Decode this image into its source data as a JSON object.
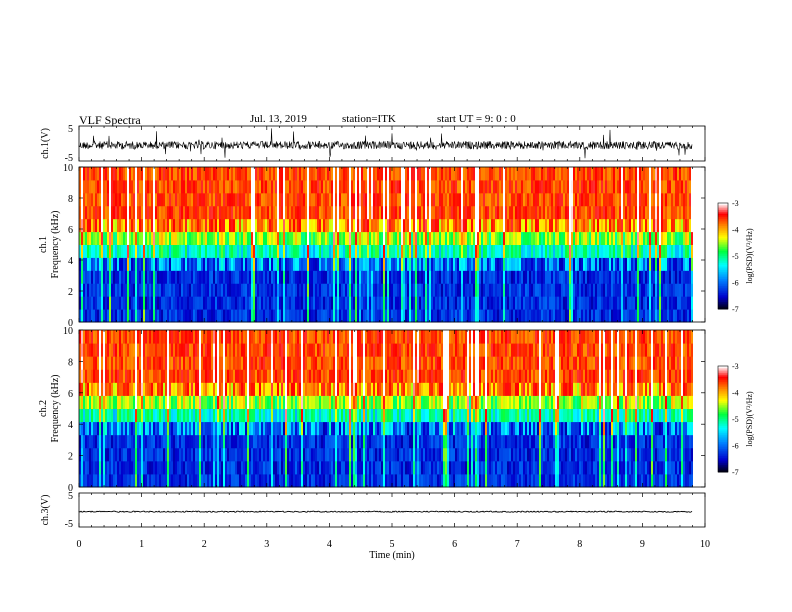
{
  "header": {
    "title": "VLF Spectra",
    "date": "Jul. 13, 2019",
    "station": "station=ITK",
    "start": "start UT =   9: 0 : 0"
  },
  "chart_data": [
    {
      "type": "line",
      "panel": "ch1-waveform",
      "ylabel": "ch.1(V)",
      "yticks": [
        "5",
        "-5"
      ],
      "ylim": [
        -5,
        5
      ],
      "xlim": [
        0,
        10
      ]
    },
    {
      "type": "heatmap",
      "panel": "ch1-spectrogram",
      "ylabel": "ch.1  Frequency (kHz)",
      "yticks": [
        "0",
        "2",
        "4",
        "6",
        "8",
        "10"
      ],
      "ylim": [
        0,
        10
      ],
      "xlim": [
        0,
        10
      ],
      "colorbar": {
        "label": "log(PSD)(V²/Hz)",
        "ticks": [
          "-3",
          "-4",
          "-5",
          "-6",
          "-7"
        ],
        "range": [
          -7,
          -3
        ],
        "colors": [
          "#000000",
          "#0000cc",
          "#0080ff",
          "#00ffff",
          "#00ff40",
          "#ffff00",
          "#ff8000",
          "#ff0000",
          "#ffffff"
        ]
      }
    },
    {
      "type": "heatmap",
      "panel": "ch2-spectrogram",
      "ylabel": "ch.2  Frequency (kHz)",
      "yticks": [
        "0",
        "2",
        "4",
        "6",
        "8",
        "10"
      ],
      "ylim": [
        0,
        10
      ],
      "xlim": [
        0,
        10
      ],
      "colorbar": {
        "label": "log(PSD)(V²/Hz)",
        "ticks": [
          "-3",
          "-4",
          "-5",
          "-6",
          "-7"
        ],
        "range": [
          -7,
          -3
        ],
        "colors": [
          "#000000",
          "#0000cc",
          "#0080ff",
          "#00ffff",
          "#00ff40",
          "#ffff00",
          "#ff8000",
          "#ff0000",
          "#ffffff"
        ]
      }
    },
    {
      "type": "line",
      "panel": "ch3-waveform",
      "ylabel": "ch.3(V)",
      "yticks": [
        "5",
        "-5"
      ],
      "ylim": [
        -5,
        5
      ],
      "xlim": [
        0,
        10
      ]
    }
  ],
  "xaxis": {
    "label": "Time  (min)",
    "ticks": [
      "0",
      "1",
      "2",
      "3",
      "4",
      "5",
      "6",
      "7",
      "8",
      "9",
      "10"
    ]
  }
}
